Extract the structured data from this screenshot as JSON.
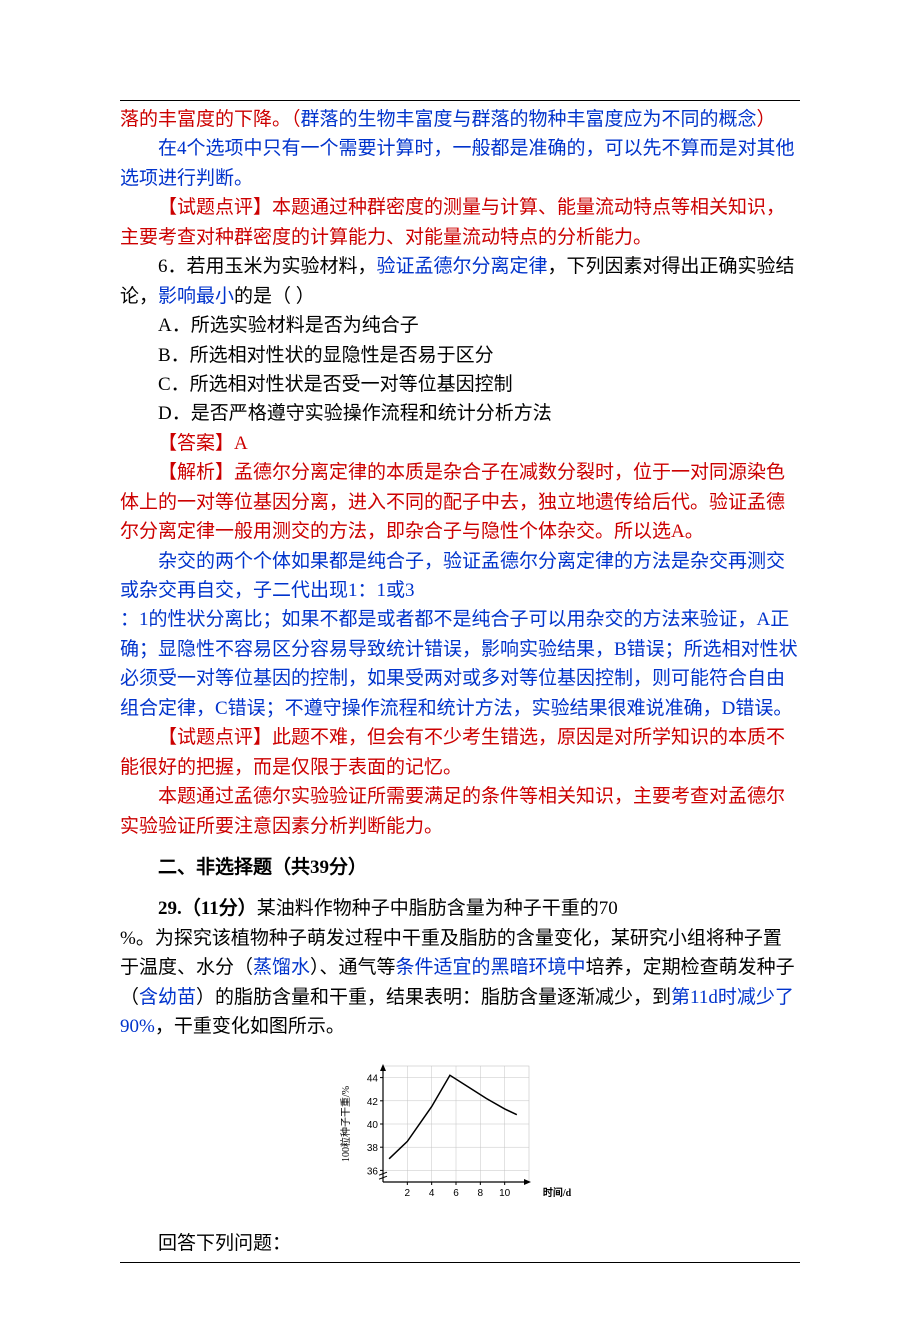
{
  "colors": {
    "text": "#000000",
    "red": "#cc0000",
    "blue": "#0033cc",
    "bg": "#ffffff",
    "grid": "#b0b0b0",
    "axis": "#000000"
  },
  "typography": {
    "body_fontsize_pt": 14,
    "line_height": 1.55,
    "font_family": "SimSun"
  },
  "frag": {
    "l1a": "落的丰富度的下降。（",
    "l1b": "群落的生物丰富度与群落的物种丰富度应为不同的概念",
    "l1c": "）"
  },
  "p1_blue": "在4个选项中只有一个需要计算时，一般都是准确的，可以先不算而是对其他选项进行判断。",
  "p2_red": "【试题点评】本题通过种群密度的测量与计算、能量流动特点等相关知识，主要考查对种群密度的计算能力、对能量流动特点的分析能力。",
  "q6": {
    "pre": "6．若用玉米为实验材料，",
    "b1": "验证孟德尔分离定律",
    "mid": "，下列因素对得出正确实验结论，",
    "b2": "影响最小",
    "tail": "的是（  ）",
    "A": "A．所选实验材料是否为纯合子",
    "B": "B．所选相对性状的显隐性是否易于区分",
    "C": "C．所选相对性状是否受一对等位基因控制",
    "D": "D．是否严格遵守实验操作流程和统计分析方法"
  },
  "ans": "【答案】A",
  "expl1": "【解析】孟德尔分离定律的本质是杂合子在减数分裂时，位于一对同源染色体上的一对等位基因分离，进入不同的配子中去，独立地遗传给后代。验证孟德尔分离定律一般用测交的方法，即杂合子与隐性个体杂交。所以选A。",
  "expl2a": "杂交的两个个体如果都是纯合子，验证孟德尔分离定律的方法是杂交再测交或杂交再自交，子二代出现1：1或3",
  "expl2b": "：1的性状分离比；如果不都是或者都不是纯合子可以用杂交的方法来验证，A正确；显隐性不容易区分容易导致统计错误，影响实验结果，B错误；所选相对性状必须受一对等位基因的控制，如果受两对或多对等位基因控制，则可能符合自由组合定律，C错误；不遵守操作流程和统计方法，实验结果很难说准确，D错误。",
  "rev1": "【试题点评】此题不难，但会有不少考生错选，原因是对所学知识的本质不能很好的把握，而是仅限于表面的记忆。",
  "rev2": "本题通过孟德尔实验验证所需要满足的条件等相关知识，主要考查对孟德尔实验验证所要注意因素分析判断能力。",
  "sect2": {
    "title": "二、非选择题",
    "note": "（共39分）"
  },
  "q29": {
    "num": "29.",
    "pts": "（11分）",
    "t1": "某油料作物种子中脂肪含量为种子干重的70",
    "t2a": "%。为探究该植物种子萌发过程中干重及脂肪的含量变化，某研究小组将种子置于温度、水分（",
    "t2b": "蒸馏水",
    "t2c": "）、通气等",
    "t2d": "条件适宜的黑暗环境中",
    "t2e": "培养，定期检查萌发种子（",
    "t2f": "含幼苗",
    "t2g": "）的脂肪含量和干重，结果表明：脂肪含量逐渐减少，到",
    "t2h": "第11d时减少了90%",
    "t2i": "，干重变化如图所示。"
  },
  "chart": {
    "type": "line",
    "x_ticks": [
      2,
      4,
      6,
      8,
      10
    ],
    "y_ticks": [
      36,
      38,
      40,
      42,
      44
    ],
    "points": [
      {
        "x": 0.5,
        "y": 37
      },
      {
        "x": 2,
        "y": 38.5
      },
      {
        "x": 4,
        "y": 41.5
      },
      {
        "x": 5.5,
        "y": 44.2
      },
      {
        "x": 7,
        "y": 43.2
      },
      {
        "x": 8.5,
        "y": 42.2
      },
      {
        "x": 10,
        "y": 41.3
      },
      {
        "x": 11,
        "y": 40.8
      }
    ],
    "xlim": [
      0,
      12
    ],
    "ylim": [
      35,
      45
    ],
    "xlabel": "时间/d",
    "ylabel": "100粒种子干重/%",
    "line_color": "#000000",
    "line_width": 1.5,
    "background": "#ffffff",
    "grid_color": "#c4c4c4",
    "axis_break_y": 35.5,
    "label_fontsize": 10
  },
  "after": "回答下列问题："
}
